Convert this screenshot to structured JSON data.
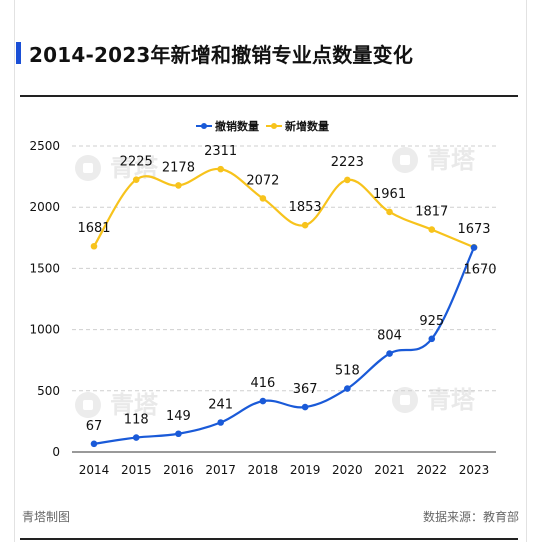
{
  "header": {
    "title": "2014-2023年新增和撤销专业点数量变化",
    "accent_color": "#1a4fd6"
  },
  "watermark": {
    "text": "青塔",
    "icon": "qingta-logo-icon"
  },
  "footer": {
    "left": "青塔制图",
    "right": "数据来源：教育部"
  },
  "chart_data": {
    "type": "line",
    "title": "2014-2023年新增和撤销专业点数量变化",
    "xlabel": "",
    "ylabel": "",
    "x": [
      "2014",
      "2015",
      "2016",
      "2017",
      "2018",
      "2019",
      "2020",
      "2021",
      "2022",
      "2023"
    ],
    "ylim": [
      0,
      2500
    ],
    "yticks": [
      "0",
      "500",
      "1000",
      "1500",
      "2000",
      "2500"
    ],
    "grid": true,
    "legend": "top-center",
    "series": [
      {
        "name": "撤销数量",
        "color": "#1a5ad8",
        "values": [
          67,
          118,
          149,
          241,
          416,
          367,
          518,
          804,
          925,
          1670
        ]
      },
      {
        "name": "新增数量",
        "color": "#f7c31c",
        "values": [
          1681,
          2225,
          2178,
          2311,
          2072,
          1853,
          2223,
          1961,
          1817,
          1673
        ]
      }
    ]
  }
}
